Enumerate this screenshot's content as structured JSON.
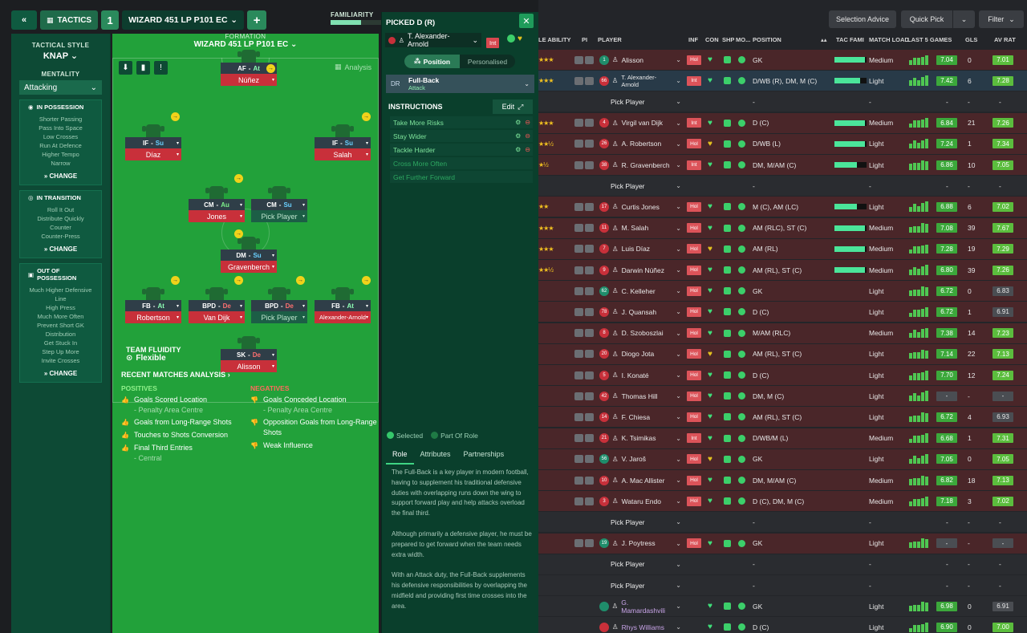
{
  "topbar": {
    "tactics_label": "TACTICS",
    "tactic_number": "1",
    "tactic_name": "WIZARD 451 LP P101 EC",
    "familiarity_label": "FAMILIARITY",
    "familiarity_level": 0.6
  },
  "style": {
    "tactical_style_label": "TACTICAL STYLE",
    "tactical_style_value": "KNAP",
    "mentality_label": "MENTALITY",
    "mentality_value": "Attacking",
    "change_label": "CHANGE",
    "in_possession": {
      "title": "IN POSSESSION",
      "items": [
        "Shorter Passing",
        "Pass Into Space",
        "Low Crosses",
        "Run At Defence",
        "Higher Tempo",
        "Narrow"
      ]
    },
    "in_transition": {
      "title": "IN TRANSITION",
      "items": [
        "Roll It Out",
        "Distribute Quickly",
        "Counter",
        "Counter-Press"
      ]
    },
    "out_of_possession": {
      "title": "OUT OF POSSESSION",
      "items": [
        "Much Higher Defensive Line",
        "High Press",
        "Much More Often",
        "Prevent Short GK Distribution",
        "Get Stuck In",
        "Step Up More",
        "Invite Crosses"
      ]
    }
  },
  "formation": {
    "label": "FORMATION",
    "name": "WIZARD 451 LP P101 EC",
    "analysis_label": "Analysis"
  },
  "pitch_players": [
    {
      "role": "AF",
      "duty": "At",
      "name": "Núñez"
    },
    {
      "role": "IF",
      "duty": "Su",
      "name": "Díaz"
    },
    {
      "role": "IF",
      "duty": "Su",
      "name": "Salah"
    },
    {
      "role": "CM",
      "duty": "Au",
      "name": "Jones"
    },
    {
      "role": "CM",
      "duty": "Su",
      "name": "Pick Player"
    },
    {
      "role": "DM",
      "duty": "Su",
      "name": "Gravenberch"
    },
    {
      "role": "FB",
      "duty": "At",
      "name": "Robertson"
    },
    {
      "role": "BPD",
      "duty": "De",
      "name": "Van Dijk"
    },
    {
      "role": "BPD",
      "duty": "De",
      "name": "Pick Player"
    },
    {
      "role": "FB",
      "duty": "At",
      "name": "Alexander-Arnold"
    },
    {
      "role": "SK",
      "duty": "De",
      "name": "Alisson"
    }
  ],
  "team_fluidity": {
    "label": "TEAM FLUIDITY",
    "value": "Flexible"
  },
  "recent_matches": {
    "title": "RECENT MATCHES ANALYSIS",
    "positives_label": "POSITIVES",
    "negatives_label": "NEGATIVES",
    "positives": [
      {
        "text": "Goals Scored Location",
        "sub": "- Penalty Area Centre"
      },
      {
        "text": "Goals from Long-Range Shots",
        "sub": ""
      },
      {
        "text": "Touches to Shots Conversion",
        "sub": ""
      },
      {
        "text": "Final Third Entries",
        "sub": "- Central"
      }
    ],
    "negatives": [
      {
        "text": "Goals Conceded Location",
        "sub": "- Penalty Area Centre"
      },
      {
        "text": "Opposition Goals from Long-Range Shots",
        "sub": ""
      },
      {
        "text": "Weak Influence",
        "sub": ""
      }
    ]
  },
  "picked": {
    "header": "PICKED D (R)",
    "player": "T. Alexander-Arnold",
    "player_badge": "Int",
    "position_label": "Position",
    "personalised_label": "Personalised",
    "role_code": "DR",
    "role_name": "Full-Back",
    "role_duty": "Attack",
    "instructions_label": "INSTRUCTIONS",
    "edit_label": "Edit",
    "instructions": [
      "Take More Risks",
      "Stay Wider",
      "Tackle Harder",
      "Cross More Often",
      "Get Further Forward"
    ],
    "legend_selected": "Selected",
    "legend_part": "Part Of Role",
    "tabs": [
      "Role",
      "Attributes",
      "Partnerships"
    ],
    "description": [
      "The Full-Back is a key player in modern football, having to supplement his traditional defensive duties with overlapping runs down the wing to support forward play and help attacks overload the final third.",
      "Although primarily a defensive player, he must be prepared to get forward when the team needs extra width.",
      "With an Attack duty, the Full-Back supplements his defensive responsibilities by overlapping the midfield and providing first time crosses into the area."
    ]
  },
  "table": {
    "buttons": {
      "selection_advice": "Selection Advice",
      "quick_pick": "Quick Pick",
      "filter": "Filter"
    },
    "headers": {
      "ability": "LE ABILITY",
      "pi": "PI",
      "player": "PLAYER",
      "inf": "INF",
      "con": "CON",
      "shp": "SHP",
      "mo": "MO...",
      "position": "POSITION",
      "tac": "TAC FAMI",
      "load": "MATCH LOAD",
      "last5": "LAST 5 GAMES",
      "gls": "GLS",
      "avrat": "AV RAT"
    },
    "pick_player_label": "Pick Player",
    "rows": [
      {
        "kind": "player",
        "tone": "red",
        "stars": "★★★",
        "num": "1",
        "name": "Alisson",
        "badge": "Hol",
        "pos": "GK",
        "fam": 0.95,
        "load": "Medium",
        "rating": "7.04",
        "gls": "0",
        "av": "7.01",
        "gk": true
      },
      {
        "kind": "player",
        "tone": "sel",
        "stars": "★★★",
        "num": "66",
        "name": "T. Alexander-Arnold",
        "badge": "Int",
        "pos": "D/WB (R), DM, M (C)",
        "fam": 0.8,
        "load": "Light",
        "rating": "7.42",
        "gls": "6",
        "av": "7.28"
      },
      {
        "kind": "pick",
        "tone": "dk",
        "pos": "-",
        "load": "-",
        "gls": "-",
        "av": "-"
      },
      {
        "kind": "player",
        "tone": "red",
        "stars": "★★★",
        "num": "4",
        "name": "Virgil van Dijk",
        "badge": "Int",
        "pos": "D (C)",
        "fam": 0.95,
        "load": "Medium",
        "rating": "6.84",
        "gls": "21",
        "av": "7.26"
      },
      {
        "kind": "player",
        "tone": "red",
        "stars": "★★½",
        "num": "26",
        "name": "A. Robertson",
        "badge": "Hol",
        "pos": "D/WB (L)",
        "fam": 0.95,
        "load": "Light",
        "rating": "7.24",
        "gls": "1",
        "av": "7.34"
      },
      {
        "kind": "player",
        "tone": "red",
        "stars": "★½",
        "num": "38",
        "name": "R. Gravenberch",
        "badge": "Int",
        "pos": "DM, M/AM (C)",
        "fam": 0.7,
        "load": "Light",
        "rating": "6.86",
        "gls": "10",
        "av": "7.05"
      },
      {
        "kind": "pick",
        "tone": "dk",
        "pos": "-",
        "load": "-",
        "gls": "-",
        "av": "-"
      },
      {
        "kind": "player",
        "tone": "red",
        "stars": "★★",
        "num": "17",
        "name": "Curtis Jones",
        "badge": "Hol",
        "pos": "M (C), AM (LC)",
        "fam": 0.7,
        "load": "Light",
        "rating": "6.88",
        "gls": "6",
        "av": "7.02"
      },
      {
        "kind": "player",
        "tone": "red",
        "stars": "★★★",
        "num": "11",
        "name": "M. Salah",
        "badge": "Hol",
        "pos": "AM (RLC), ST (C)",
        "fam": 0.95,
        "load": "Medium",
        "rating": "7.08",
        "gls": "39",
        "av": "7.67"
      },
      {
        "kind": "player",
        "tone": "red",
        "stars": "★★★",
        "num": "7",
        "name": "Luis Díaz",
        "badge": "Hol",
        "pos": "AM (RL)",
        "fam": 0.95,
        "load": "Medium",
        "rating": "7.28",
        "gls": "19",
        "av": "7.29"
      },
      {
        "kind": "player",
        "tone": "red",
        "stars": "★★½",
        "num": "9",
        "name": "Darwin Núñez",
        "badge": "Hol",
        "pos": "AM (RL), ST (C)",
        "fam": 0.95,
        "load": "Medium",
        "rating": "6.80",
        "gls": "39",
        "av": "7.26"
      },
      {
        "kind": "player",
        "tone": "red",
        "stars": "",
        "num": "62",
        "name": "C. Kelleher",
        "badge": "Hol",
        "pos": "GK",
        "fam": 0,
        "load": "Light",
        "rating": "6.72",
        "gls": "0",
        "av": "6.83",
        "gk": true
      },
      {
        "kind": "player",
        "tone": "red",
        "stars": "",
        "num": "78",
        "name": "J. Quansah",
        "badge": "Hol",
        "pos": "D (C)",
        "fam": 0,
        "load": "Light",
        "rating": "6.72",
        "gls": "1",
        "av": "6.91"
      },
      {
        "kind": "player",
        "tone": "red",
        "stars": "",
        "num": "8",
        "name": "D. Szoboszlai",
        "badge": "Hol",
        "pos": "M/AM (RLC)",
        "fam": 0,
        "load": "Medium",
        "rating": "7.38",
        "gls": "14",
        "av": "7.23"
      },
      {
        "kind": "player",
        "tone": "red",
        "stars": "",
        "num": "20",
        "name": "Diogo Jota",
        "badge": "Hol",
        "pos": "AM (RL), ST (C)",
        "fam": 0,
        "load": "Light",
        "rating": "7.14",
        "gls": "22",
        "av": "7.13"
      },
      {
        "kind": "player",
        "tone": "red",
        "stars": "",
        "num": "5",
        "name": "I. Konaté",
        "badge": "Hol",
        "pos": "D (C)",
        "fam": 0,
        "load": "Light",
        "rating": "7.70",
        "gls": "12",
        "av": "7.24"
      },
      {
        "kind": "player",
        "tone": "red",
        "stars": "",
        "num": "42",
        "name": "Thomas Hill",
        "badge": "Hol",
        "pos": "DM, M (C)",
        "fam": 0,
        "load": "Light",
        "rating": "-",
        "gls": "-",
        "av": "-"
      },
      {
        "kind": "player",
        "tone": "red",
        "stars": "",
        "num": "14",
        "name": "F. Chiesa",
        "badge": "Hol",
        "pos": "AM (RL), ST (C)",
        "fam": 0,
        "load": "Light",
        "rating": "6.72",
        "gls": "4",
        "av": "6.93"
      },
      {
        "kind": "player",
        "tone": "red",
        "stars": "",
        "num": "21",
        "name": "K. Tsimikas",
        "badge": "Int",
        "pos": "D/WB/M (L)",
        "fam": 0,
        "load": "Medium",
        "rating": "6.68",
        "gls": "1",
        "av": "7.31"
      },
      {
        "kind": "player",
        "tone": "red",
        "stars": "",
        "num": "56",
        "name": "V. Jaroš",
        "badge": "Hol",
        "pos": "GK",
        "fam": 0,
        "load": "Light",
        "rating": "7.05",
        "gls": "0",
        "av": "7.05",
        "gk": true
      },
      {
        "kind": "player",
        "tone": "red",
        "stars": "",
        "num": "10",
        "name": "A. Mac Allister",
        "badge": "Hol",
        "pos": "DM, M/AM (C)",
        "fam": 0,
        "load": "Medium",
        "rating": "6.82",
        "gls": "18",
        "av": "7.13"
      },
      {
        "kind": "player",
        "tone": "red",
        "stars": "",
        "num": "3",
        "name": "Wataru Endo",
        "badge": "Hol",
        "pos": "D (C), DM, M (C)",
        "fam": 0,
        "load": "Medium",
        "rating": "7.18",
        "gls": "3",
        "av": "7.02"
      },
      {
        "kind": "pick",
        "tone": "dk",
        "pos": "-",
        "load": "-",
        "gls": "-",
        "av": "-"
      },
      {
        "kind": "player",
        "tone": "red",
        "stars": "",
        "num": "19",
        "name": "J. Poytress",
        "badge": "Hol",
        "pos": "GK",
        "fam": 0,
        "load": "Light",
        "rating": "-",
        "gls": "-",
        "av": "-",
        "gk": true
      },
      {
        "kind": "pick",
        "tone": "dk",
        "pos": "-",
        "load": "-",
        "gls": "-",
        "av": "-"
      },
      {
        "kind": "pick",
        "tone": "dk",
        "pos": "-",
        "load": "-",
        "gls": "-",
        "av": "-"
      },
      {
        "kind": "player",
        "tone": "dk",
        "stars": "",
        "num": "",
        "name": "G. Mamardashvili",
        "badge": "",
        "pos": "GK",
        "fam": 0,
        "load": "Light",
        "rating": "6.98",
        "gls": "0",
        "av": "6.91",
        "gk": true
      },
      {
        "kind": "player",
        "tone": "dk",
        "stars": "",
        "num": "",
        "name": "Rhys Williams",
        "badge": "",
        "pos": "D (C)",
        "fam": 0,
        "load": "Light",
        "rating": "6.90",
        "gls": "0",
        "av": "7.00"
      }
    ]
  }
}
